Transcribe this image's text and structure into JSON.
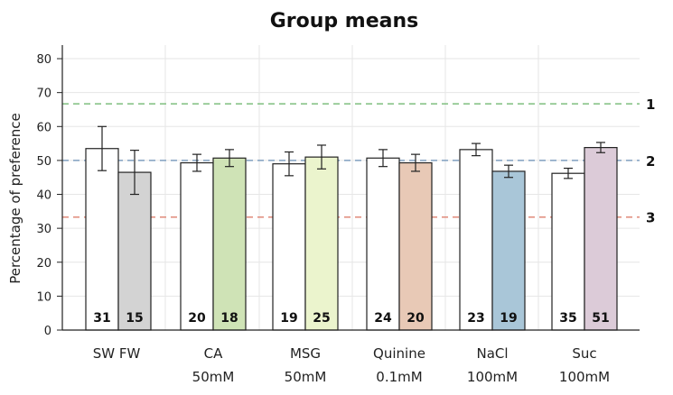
{
  "chart_data": {
    "type": "bar",
    "title": "Group means",
    "ylabel": "Percentage of preference",
    "ylim": [
      0,
      84
    ],
    "yticks": [
      0,
      10,
      20,
      30,
      40,
      50,
      60,
      70,
      80
    ],
    "grid": true,
    "groups": [
      {
        "label": "SW  FW",
        "sublabel": ""
      },
      {
        "label": "CA",
        "sublabel": "50mM"
      },
      {
        "label": "MSG",
        "sublabel": "50mM"
      },
      {
        "label": "Quinine",
        "sublabel": "0.1mM"
      },
      {
        "label": "NaCl",
        "sublabel": "100mM"
      },
      {
        "label": "Suc",
        "sublabel": "100mM"
      }
    ],
    "bars": [
      {
        "group": 0,
        "value": 53.5,
        "err": 6.5,
        "n": "31",
        "color": "#ffffff"
      },
      {
        "group": 0,
        "value": 46.5,
        "err": 6.5,
        "n": "15",
        "color": "#d3d3d3"
      },
      {
        "group": 1,
        "value": 49.3,
        "err": 2.5,
        "n": "20",
        "color": "#ffffff"
      },
      {
        "group": 1,
        "value": 50.7,
        "err": 2.5,
        "n": "18",
        "color": "#cfe3b6"
      },
      {
        "group": 2,
        "value": 49.0,
        "err": 3.5,
        "n": "19",
        "color": "#ffffff"
      },
      {
        "group": 2,
        "value": 51.0,
        "err": 3.5,
        "n": "25",
        "color": "#ebf4cd"
      },
      {
        "group": 3,
        "value": 50.7,
        "err": 2.5,
        "n": "24",
        "color": "#ffffff"
      },
      {
        "group": 3,
        "value": 49.3,
        "err": 2.5,
        "n": "20",
        "color": "#e8c9b6"
      },
      {
        "group": 4,
        "value": 53.2,
        "err": 1.8,
        "n": "23",
        "color": "#ffffff"
      },
      {
        "group": 4,
        "value": 46.8,
        "err": 1.8,
        "n": "19",
        "color": "#a9c6d8"
      },
      {
        "group": 5,
        "value": 46.2,
        "err": 1.5,
        "n": "35",
        "color": "#ffffff"
      },
      {
        "group": 5,
        "value": 53.8,
        "err": 1.5,
        "n": "51",
        "color": "#dccbd8"
      }
    ],
    "reference_lines": [
      {
        "label": "1",
        "value": 66.7,
        "color": "#7fbf7f"
      },
      {
        "label": "2",
        "value": 50.0,
        "color": "#7f9fbf"
      },
      {
        "label": "3",
        "value": 33.3,
        "color": "#e08a7a"
      }
    ]
  }
}
